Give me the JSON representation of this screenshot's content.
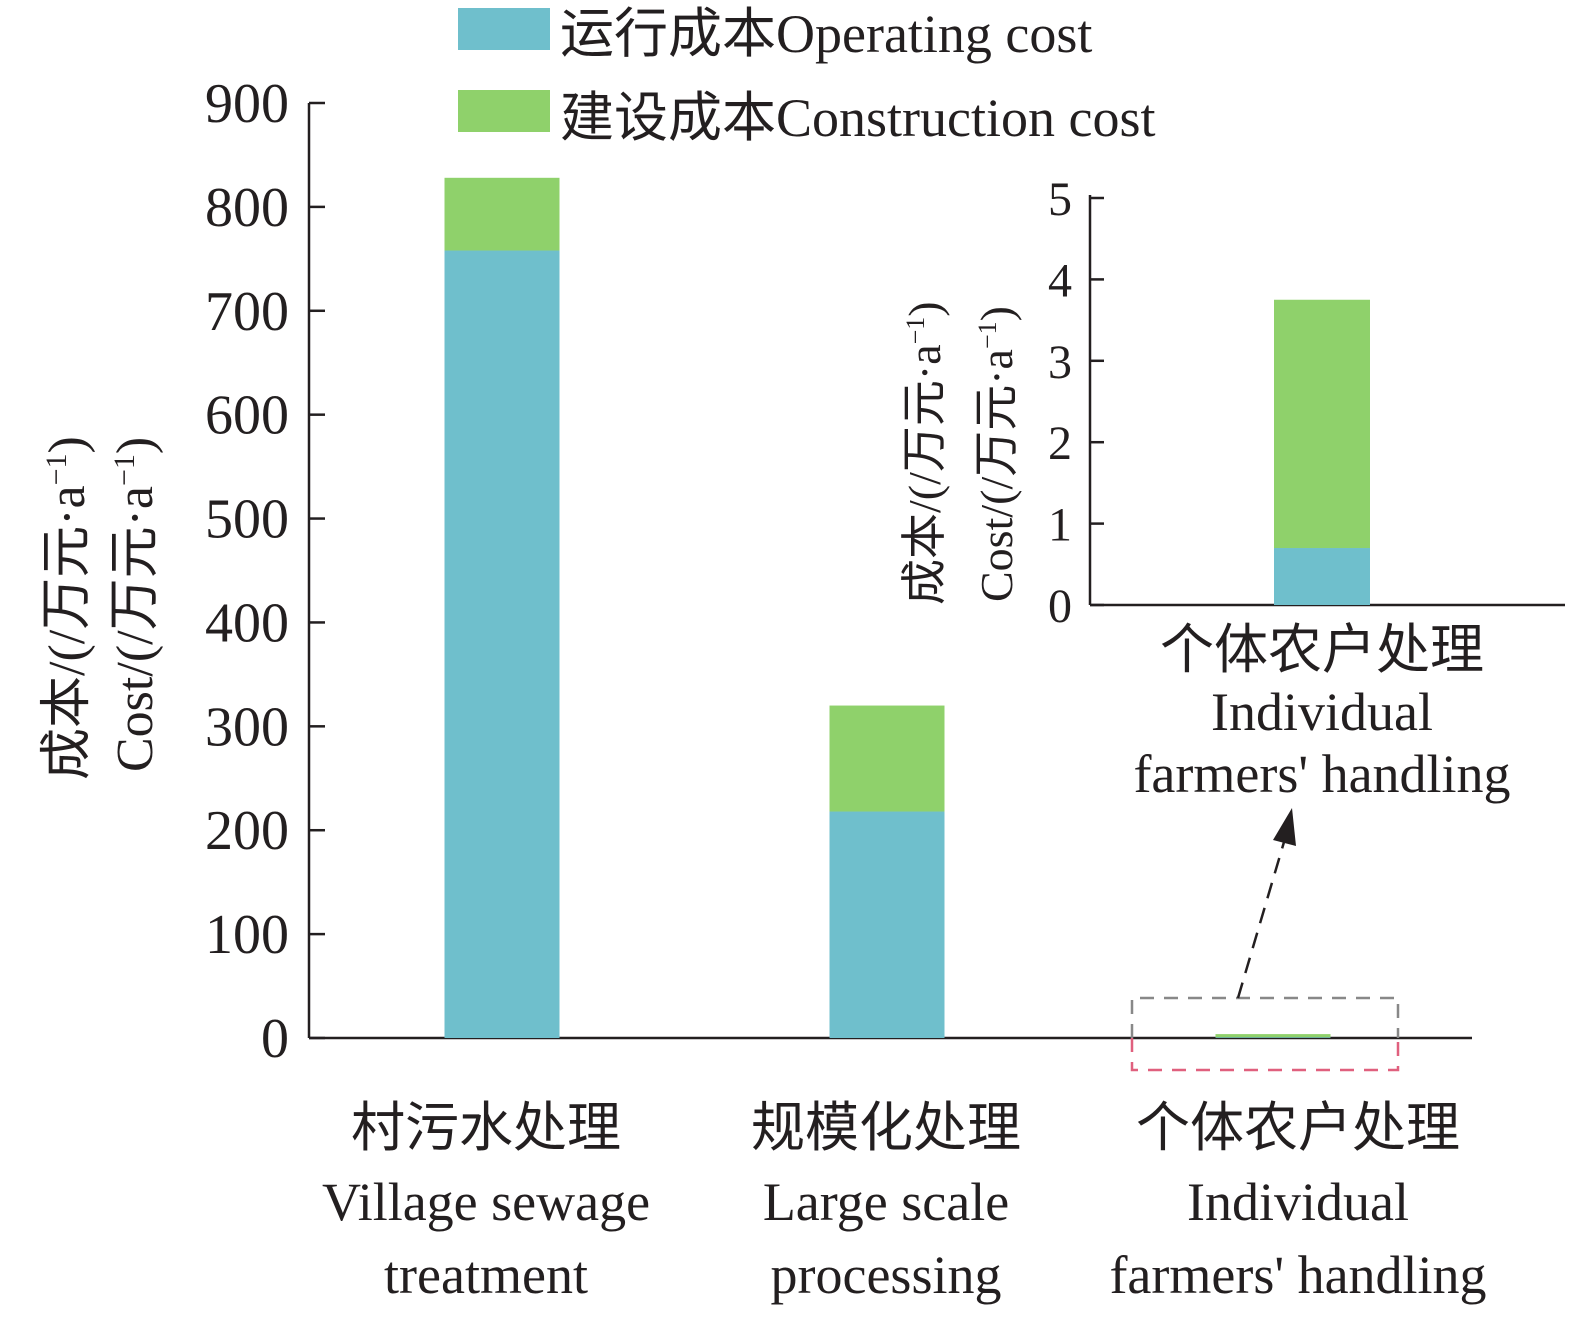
{
  "chart_data": [
    {
      "type": "bar",
      "stacked": true,
      "categories": [
        {
          "zh": "村污水处理",
          "en": [
            "Village sewage",
            "treatment"
          ]
        },
        {
          "zh": "规模化处理",
          "en": [
            "Large scale",
            "processing"
          ]
        },
        {
          "zh": "个体农户处理",
          "en": [
            "Individual",
            "farmers' handling"
          ]
        }
      ],
      "series": [
        {
          "name": "运行成本Operating cost",
          "color": "#6fbfcc",
          "values": [
            758,
            218,
            0.7
          ]
        },
        {
          "name": "建设成本Construction cost",
          "color": "#8fd16b",
          "values": [
            70,
            102,
            3.05
          ]
        }
      ],
      "ylabel_zh": "成本/(/万元·a",
      "ylabel_en": "Cost/(/万元·a",
      "ylabel_sup": "−1",
      "ylabel_close": ")",
      "ylim": [
        0,
        900
      ],
      "yticks": [
        0,
        100,
        200,
        300,
        400,
        500,
        600,
        700,
        800,
        900
      ],
      "legend_position": "top"
    },
    {
      "type": "bar",
      "stacked": true,
      "inset": true,
      "categories": [
        {
          "zh": "个体农户处理",
          "en": [
            "Individual",
            "farmers' handling"
          ]
        }
      ],
      "series": [
        {
          "name": "运行成本Operating cost",
          "color": "#6fbfcc",
          "values": [
            0.7
          ]
        },
        {
          "name": "建设成本Construction cost",
          "color": "#8fd16b",
          "values": [
            3.05
          ]
        }
      ],
      "ylabel_zh": "成本/(/万元·a",
      "ylabel_en": "Cost/(/万元·a",
      "ylabel_sup": "−1",
      "ylabel_close": ")",
      "ylim": [
        0,
        5
      ],
      "yticks": [
        0,
        1,
        2,
        3,
        4,
        5
      ]
    }
  ]
}
